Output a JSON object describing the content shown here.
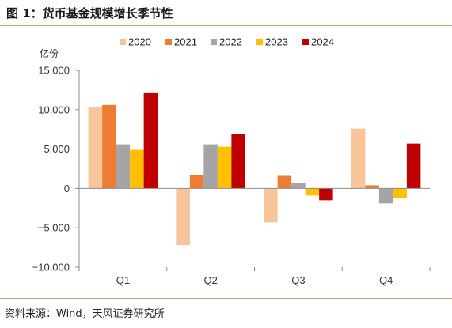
{
  "title": "图 1：货币基金规模增长季节性",
  "source": "资料来源：Wind，天风证券研究所",
  "chart_data": {
    "type": "bar",
    "title": "图 1：货币基金规模增长季节性",
    "ylabel": "亿份",
    "xlabel": "",
    "ylim": [
      -10000,
      15000
    ],
    "yticks": [
      15000,
      10000,
      5000,
      0,
      -5000,
      -10000
    ],
    "ytick_labels": [
      "15,000",
      "10,000",
      "5,000",
      "0",
      "−5,000",
      "−10,000"
    ],
    "categories": [
      "Q1",
      "Q2",
      "Q3",
      "Q4"
    ],
    "legend_position": "top",
    "grid": false,
    "series": [
      {
        "name": "2020",
        "color": "#f8c49a",
        "values": [
          10300,
          -7200,
          -4300,
          7600
        ]
      },
      {
        "name": "2021",
        "color": "#ee7d31",
        "values": [
          10600,
          1700,
          1600,
          400
        ]
      },
      {
        "name": "2022",
        "color": "#a5a5a5",
        "values": [
          5600,
          5600,
          700,
          -1900
        ]
      },
      {
        "name": "2023",
        "color": "#ffc000",
        "values": [
          4900,
          5300,
          -900,
          -1200
        ]
      },
      {
        "name": "2024",
        "color": "#c00000",
        "values": [
          12100,
          6900,
          -1500,
          5700
        ]
      }
    ]
  }
}
